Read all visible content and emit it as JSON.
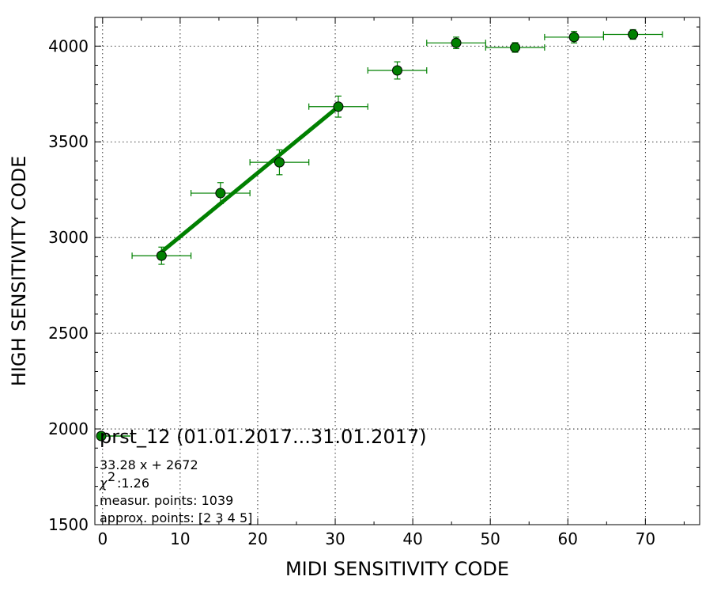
{
  "chart_data": {
    "type": "scatter",
    "xlabel": "MIDI SENSITIVITY CODE",
    "ylabel": "HIGH SENSITIVITY CODE",
    "xlim": [
      -1,
      77
    ],
    "ylim": [
      1500,
      4150
    ],
    "xticks": [
      0,
      10,
      20,
      30,
      40,
      50,
      60,
      70
    ],
    "yticks": [
      1500,
      2000,
      2500,
      3000,
      3500,
      4000
    ],
    "grid": true,
    "colors": {
      "series": "#008000",
      "marker_edge": "#000000"
    },
    "series": [
      {
        "name": "prst_12 (01.01.2017...31.01.2017)",
        "x": [
          7.6,
          15.2,
          22.8,
          30.4,
          38.0,
          45.6,
          53.2,
          60.8,
          68.4
        ],
        "y": [
          2905,
          3232,
          3393,
          3684,
          3873,
          4017,
          3993,
          4047,
          4061
        ],
        "xerr": [
          3.8,
          3.8,
          3.8,
          3.8,
          3.8,
          3.8,
          3.8,
          3.8,
          3.8
        ],
        "yerr": [
          45,
          55,
          65,
          55,
          45,
          30,
          25,
          30,
          25
        ]
      }
    ],
    "fit": {
      "slope": 33.28,
      "intercept": 2672,
      "x_range": [
        7.6,
        30.4
      ]
    },
    "legend_position": "lower-left",
    "annotations": [
      "33.28 x + 2672",
      ":1.26",
      "measur. points: 1039",
      "approx. points: [2 3 4 5]"
    ],
    "chi_symbol": "χ",
    "chi_exponent": "2"
  }
}
